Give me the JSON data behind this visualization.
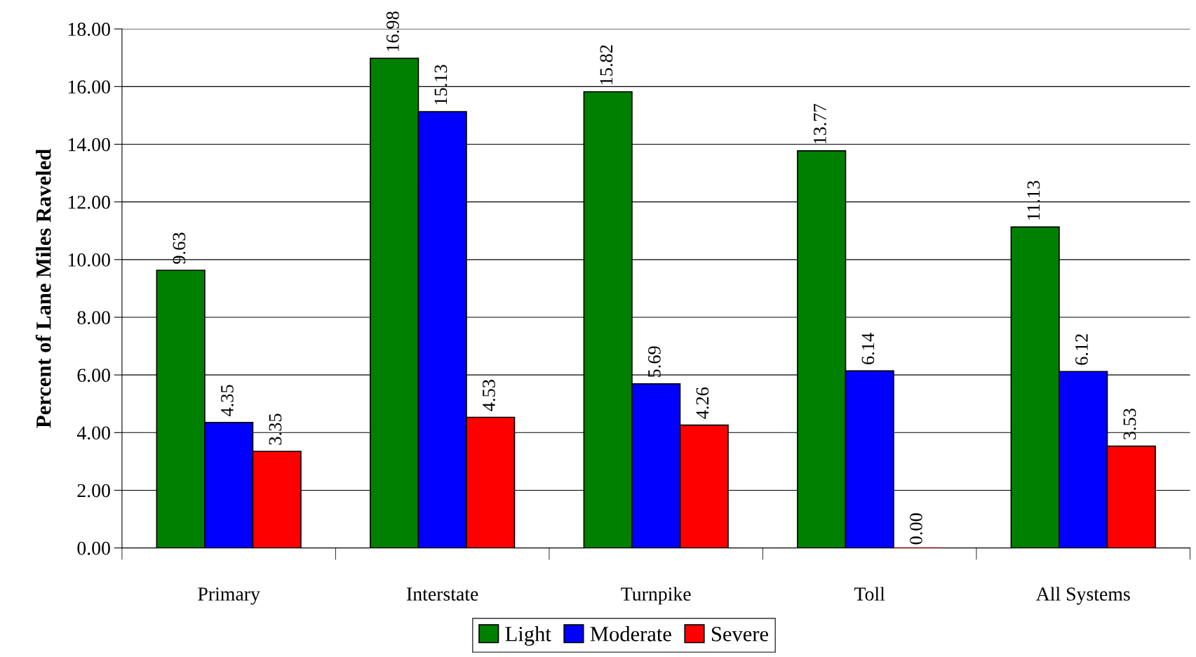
{
  "chart_data": {
    "type": "bar",
    "ylabel": "Percent of Lane Miles Raveled",
    "categories": [
      "Primary",
      "Interstate",
      "Turnpike",
      "Toll",
      "All Systems"
    ],
    "series": [
      {
        "name": "Light",
        "color": "#008000",
        "values": [
          9.63,
          16.98,
          15.82,
          13.77,
          11.13
        ],
        "value_labels": [
          "9.63",
          "16.98",
          "15.82",
          "13.77",
          "11.13"
        ]
      },
      {
        "name": "Moderate",
        "color": "#0000ff",
        "values": [
          4.35,
          15.13,
          5.69,
          6.14,
          6.12
        ],
        "value_labels": [
          "4.35",
          "15.13",
          "5.69",
          "6.14",
          "6.12"
        ]
      },
      {
        "name": "Severe",
        "color": "#ff0000",
        "values": [
          3.35,
          4.53,
          4.26,
          0.0,
          3.53
        ],
        "value_labels": [
          "3.35",
          "4.53",
          "4.26",
          "0.00",
          "3.53"
        ]
      }
    ],
    "ylim": [
      0,
      18
    ],
    "yticks": [
      {
        "value": 0,
        "label": "0.00"
      },
      {
        "value": 2,
        "label": "2.00"
      },
      {
        "value": 4,
        "label": "4.00"
      },
      {
        "value": 6,
        "label": "6.00"
      },
      {
        "value": 8,
        "label": "8.00"
      },
      {
        "value": 10,
        "label": "10.00"
      },
      {
        "value": 12,
        "label": "12.00"
      },
      {
        "value": 14,
        "label": "14.00"
      },
      {
        "value": 16,
        "label": "16.00"
      },
      {
        "value": 18,
        "label": "18.00"
      }
    ],
    "grid": "y",
    "legend": "bottom"
  }
}
